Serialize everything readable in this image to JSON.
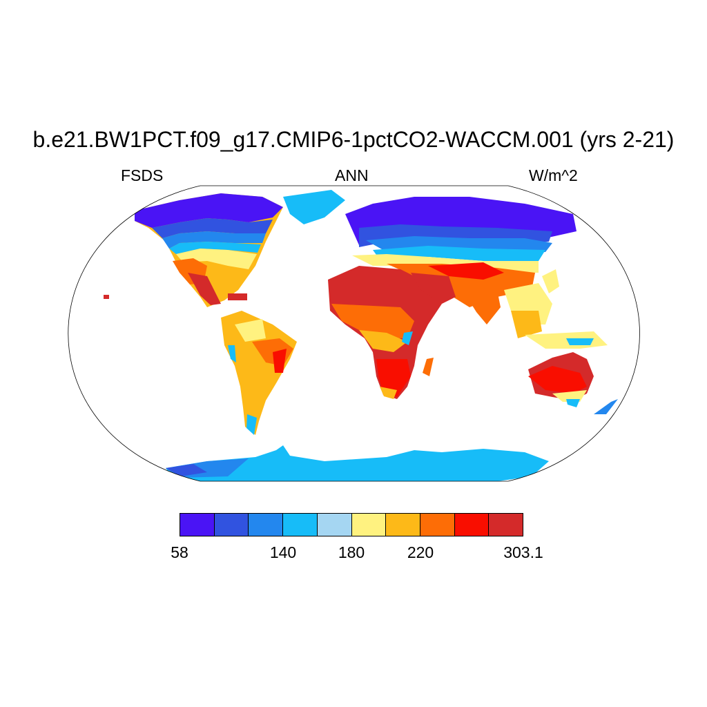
{
  "title": "b.e21.BW1PCT.f09_g17.CMIP6-1pctCO2-WACCM.001 (yrs 2-21)",
  "variable": "FSDS",
  "season": "ANN",
  "units": "W/m^2",
  "colorbar": {
    "colors": [
      "#4a14f5",
      "#3153e0",
      "#2387ee",
      "#17bcf8",
      "#a5d6f2",
      "#fff280",
      "#fdb918",
      "#fd6d06",
      "#f90e00",
      "#d42a2a"
    ],
    "tick_labels": [
      "58",
      "140",
      "180",
      "220",
      "303.1"
    ]
  }
}
